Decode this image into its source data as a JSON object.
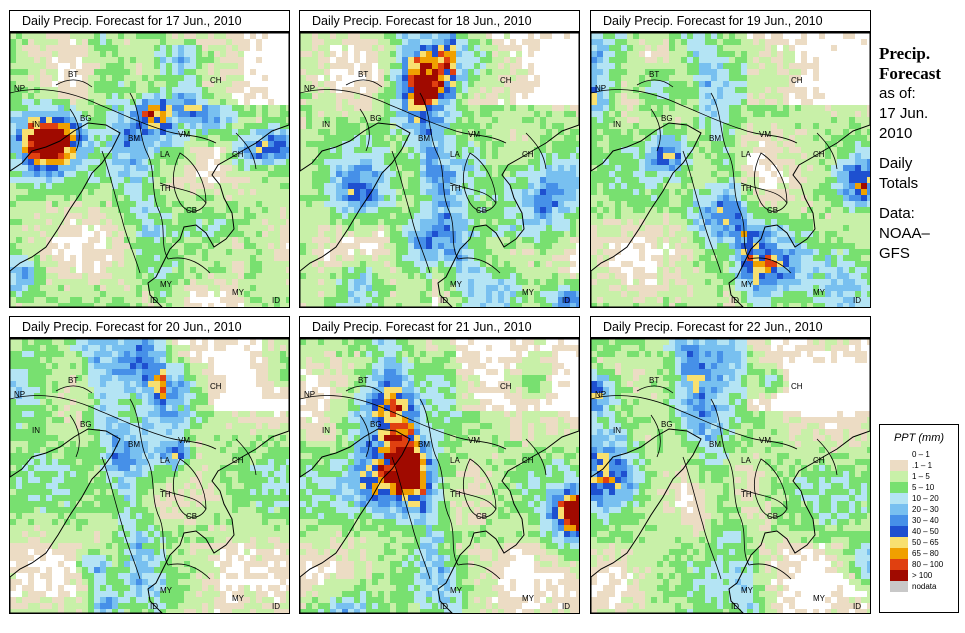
{
  "panels": [
    {
      "title": "Daily Precip. Forecast for  17 Jun., 2010",
      "seed": 17
    },
    {
      "title": "Daily Precip. Forecast for  18 Jun., 2010",
      "seed": 18
    },
    {
      "title": "Daily Precip. Forecast for  19 Jun., 2010",
      "seed": 19
    },
    {
      "title": "Daily Precip. Forecast for  20 Jun., 2010",
      "seed": 20
    },
    {
      "title": "Daily Precip. Forecast for  21 Jun., 2010",
      "seed": 21
    },
    {
      "title": "Daily Precip. Forecast for  22 Jun., 2010",
      "seed": 22
    }
  ],
  "map_labels": [
    "NP",
    "BT",
    "IN",
    "BG",
    "BM",
    "CH",
    "VM",
    "LA",
    "TH",
    "CB",
    "CH",
    "MY",
    "MY",
    "ID",
    "ID"
  ],
  "side_panel": {
    "title_line1": "Precip.",
    "title_line2": "Forecast",
    "line1": "as of:",
    "line2": "17 Jun.",
    "line3": "2010",
    "line4": "Daily",
    "line5": "Totals",
    "line6": "Data:",
    "line7": "NOAA–",
    "line8": "GFS"
  },
  "legend": {
    "title": "PPT (mm)",
    "items": [
      {
        "label": "0 – 1",
        "color": "#ffffff"
      },
      {
        "label": ".1 – 1",
        "color": "#ecdcc4"
      },
      {
        "label": "1 – 5",
        "color": "#c8f0a8"
      },
      {
        "label": "5 – 10",
        "color": "#78e070"
      },
      {
        "label": "10 – 20",
        "color": "#b4e4f4"
      },
      {
        "label": "20 – 30",
        "color": "#78c0f0"
      },
      {
        "label": "30 – 40",
        "color": "#4690e8"
      },
      {
        "label": "40 – 50",
        "color": "#1e50d0"
      },
      {
        "label": "50 – 65",
        "color": "#f8e070"
      },
      {
        "label": "65 – 80",
        "color": "#f0a000"
      },
      {
        "label": "80 – 100",
        "color": "#e04010"
      },
      {
        "label": "> 100",
        "color": "#a00a00"
      },
      {
        "label": "nodata",
        "color": "#c8c8c8"
      }
    ]
  }
}
